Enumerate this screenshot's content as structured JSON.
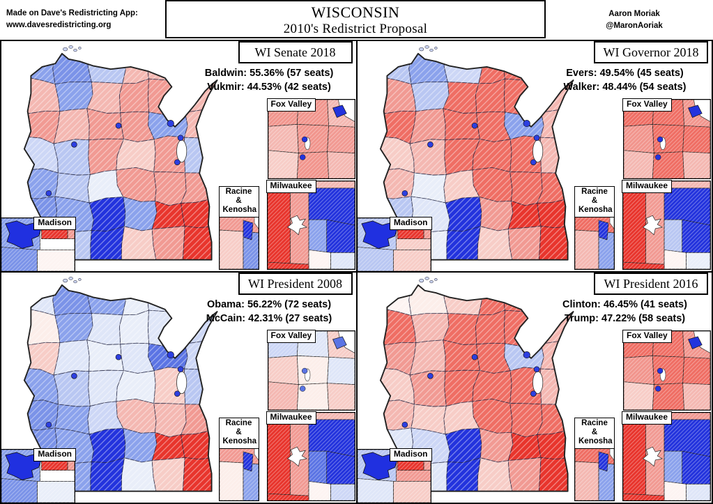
{
  "header": {
    "attribution_line1": "Made on Dave's Redistricting App:",
    "attribution_line2": "www.davesredistricting.org",
    "title_line1": "WISCONSIN",
    "title_line2": "2010's Redistrict Proposal",
    "author_line1": "Aaron Moriak",
    "author_line2": "@MaronAoriak"
  },
  "inset_labels": {
    "fox_valley": "Fox Valley",
    "milwaukee": "Milwaukee",
    "racine_line1": "Racine &",
    "racine_line2": "Kenosha",
    "madison": "Madison"
  },
  "palette": {
    "strong_red": "#e8352d",
    "medium_red": "#ef6e64",
    "red_hatch": "#f19a93",
    "pink": "#f4b8b2",
    "pale_pink": "#f7cdc7",
    "near_white_pink": "#fdf4f2",
    "white": "#ffffff",
    "faint_blue": "#e9eef9",
    "pale_blue": "#dfe6f8",
    "light_blue": "#cdd7f6",
    "light_blue_hatch": "#b9c7f2",
    "medium_blue": "#8ba2ec",
    "medium_blue2": "#7b93e8",
    "strong_blue": "#2333dd",
    "dark_blue": "#2030e0",
    "city_dot": "#2d3fe0",
    "border": "#000000"
  },
  "quadrants": [
    {
      "id": "wi-senate-2018",
      "title": "WI Senate 2018",
      "stat1": "Baldwin: 55.36% (57 seats)",
      "stat2": "Vukmir: 44.53% (42 seats)",
      "map_cells": [
        "#8ba2ec",
        "#7b93e8",
        "#b9c7f2",
        "#f4b8b2",
        "#f4b8b2",
        "#cdd7f6",
        "#f4b8b2",
        "#8ba2ec",
        "#f4b8b2",
        "#f19a93",
        "#f19a93",
        "#f4b8b2",
        "#f19a93",
        "#f4b8b2",
        "#f19a93",
        "#f19a93",
        "#8ba2ec",
        "#f4b8b2",
        "#cdd7f6",
        "#b9c7f2",
        "#f19a93",
        "#f7cdc7",
        "#f19a93",
        "#b9c7f2",
        "#8ba2ec",
        "#b9c7f2",
        "#e9eef9",
        "#f19a93",
        "#f19a93",
        "#f19a93",
        "#7b93e8",
        "#8ba2ec",
        "#2333dd",
        "#8ba2ec",
        "#e8352d",
        "#e8352d",
        "#8ba2ec",
        "#b9c7f2",
        "#2333dd",
        "#f7cdc7",
        "#f19a93",
        "#e8352d"
      ],
      "insets": {
        "fox_valley": [
          "#f1958d",
          "#f1958d",
          "#f4b8b2",
          "#f4b8b2",
          "#f1958d",
          "#f19a93",
          "#f7cdc7",
          "#f1958d",
          "#f4b8b2",
          "#2333dd"
        ],
        "milwaukee": [
          "#e8352d",
          "#f19a93",
          "#f4b8b2",
          "#2333dd",
          "#2333dd",
          "#8ba2ec",
          "#fdf4f2",
          "#dfe6f8",
          "#e8352d"
        ],
        "racine": [
          "#f19a93",
          "#f7cdc7",
          "#7b93e8",
          "#2333dd"
        ],
        "madison": [
          "#8ba2ec",
          "#2030e0",
          "#ffffff",
          "#e8352d",
          "#f19a93",
          "#7b93e8",
          "#fdf4f2"
        ]
      }
    },
    {
      "id": "wi-governor-2018",
      "title": "WI Governor 2018",
      "stat1": "Evers: 49.54% (45 seats)",
      "stat2": "Walker: 48.44% (54 seats)",
      "map_cells": [
        "#b9c7f2",
        "#8ba2ec",
        "#cdd7f6",
        "#ef6e64",
        "#ef6e64",
        "#f4b8b2",
        "#f19a93",
        "#b9c7f2",
        "#ef6e64",
        "#ef6e64",
        "#ef6e64",
        "#f4b8b2",
        "#ef6e64",
        "#f19a93",
        "#ef6e64",
        "#ef6e64",
        "#8ba2ec",
        "#f4b8b2",
        "#f7cdc7",
        "#f4b8b2",
        "#ef6e64",
        "#ef6e64",
        "#ef6e64",
        "#f4b8b2",
        "#f4b8b2",
        "#e9eef9",
        "#f7cdc7",
        "#ef6e64",
        "#ef6e64",
        "#ef6e64",
        "#b9c7f2",
        "#dfe6f8",
        "#2333dd",
        "#f19a93",
        "#e8352d",
        "#e8352d",
        "#b9c7f2",
        "#e9eef9",
        "#2333dd",
        "#f7cdc7",
        "#f19a93",
        "#e8352d"
      ],
      "insets": {
        "fox_valley": [
          "#ef6e64",
          "#ef6e64",
          "#f1958d",
          "#f1958d",
          "#ef6e64",
          "#ef6e64",
          "#f4b8b2",
          "#ef6e64",
          "#f4b8b2",
          "#2333dd"
        ],
        "milwaukee": [
          "#e8352d",
          "#f19a93",
          "#f4b8b2",
          "#2333dd",
          "#2333dd",
          "#b9c7f2",
          "#fdf4f2",
          "#e9eef9",
          "#e8352d"
        ],
        "racine": [
          "#ef6e64",
          "#f4b8b2",
          "#8ba2ec",
          "#2333dd"
        ],
        "madison": [
          "#b9c7f2",
          "#2030e0",
          "#f7cdc7",
          "#e8352d",
          "#f19a93",
          "#b9c7f2",
          "#f7cdc7"
        ]
      }
    },
    {
      "id": "wi-president-2008",
      "title": "WI President 2008",
      "stat1": "Obama: 56.22% (72 seats)",
      "stat2": "McCain: 42.31% (27 seats)",
      "map_cells": [
        "#dfe6f8",
        "#7b93e8",
        "#8ba2ec",
        "#e9eef9",
        "#dfe6f8",
        "#dfe6f8",
        "#fceeea",
        "#8ba2ec",
        "#dfe6f8",
        "#e9eef9",
        "#dfe6f8",
        "#cdd7f6",
        "#f7cdc7",
        "#dfe6f8",
        "#e9eef9",
        "#dfe6f8",
        "#5b74e4",
        "#cdd7f6",
        "#8ba2ec",
        "#b9c7f2",
        "#dfe6f8",
        "#e9eef9",
        "#f7cdc7",
        "#b9c7f2",
        "#7b93e8",
        "#8ba2ec",
        "#cdd7f6",
        "#f4b8b2",
        "#f4b8b2",
        "#f19a93",
        "#7b93e8",
        "#8ba2ec",
        "#2333dd",
        "#8ba2ec",
        "#e8352d",
        "#e8352d",
        "#8ba2ec",
        "#8ba2ec",
        "#2333dd",
        "#e9eef9",
        "#f7cdc7",
        "#e8352d"
      ],
      "insets": {
        "fox_valley": [
          "#cdd7f6",
          "#dfe6f8",
          "#f7cdc7",
          "#f7cdc7",
          "#fceeea",
          "#dfe6f8",
          "#f4b8b2",
          "#fceeea",
          "#f7cdc7",
          "#5b74e4"
        ],
        "milwaukee": [
          "#e8352d",
          "#f19a93",
          "#f4b8b2",
          "#2333dd",
          "#2333dd",
          "#5b74e4",
          "#fdf4f2",
          "#cdd7f6",
          "#e8352d"
        ],
        "racine": [
          "#f19a93",
          "#fceeea",
          "#8ba2ec",
          "#2333dd"
        ],
        "madison": [
          "#8ba2ec",
          "#2030e0",
          "#ffffff",
          "#e8352d",
          "#f19a93",
          "#7b93e8",
          "#e9eef9"
        ]
      }
    },
    {
      "id": "wi-president-2016",
      "title": "WI President 2016",
      "stat1": "Clinton: 46.45% (41 seats)",
      "stat2": "Trump: 47.22% (58 seats)",
      "map_cells": [
        "#fdf4f2",
        "#fceeea",
        "#f7cdc7",
        "#ef6e64",
        "#ef6e64",
        "#f4b8b2",
        "#ef6e64",
        "#f4b8b2",
        "#ef6e64",
        "#ef6e64",
        "#ef6e64",
        "#f4b8b2",
        "#f19a93",
        "#f4b8b2",
        "#ef6e64",
        "#ef6e64",
        "#b9c7f2",
        "#f4b8b2",
        "#f7cdc7",
        "#f19a93",
        "#ef6e64",
        "#ef6e64",
        "#ef6e64",
        "#f4b8b2",
        "#f4b8b2",
        "#f7cdc7",
        "#f7cdc7",
        "#ef6e64",
        "#ef6e64",
        "#ef6e64",
        "#dfe6f8",
        "#cdd7f6",
        "#2333dd",
        "#f19a93",
        "#e8352d",
        "#e8352d",
        "#cdd7f6",
        "#dfe6f8",
        "#2333dd",
        "#f7cdc7",
        "#f19a93",
        "#e8352d"
      ],
      "insets": {
        "fox_valley": [
          "#ef6e64",
          "#ef6e64",
          "#f1958d",
          "#f1958d",
          "#ef6e64",
          "#ef6e64",
          "#f7cdc7",
          "#ef6e64",
          "#f4b8b2",
          "#2333dd"
        ],
        "milwaukee": [
          "#e8352d",
          "#f19a93",
          "#f19a93",
          "#2333dd",
          "#2333dd",
          "#8ba2ec",
          "#fdf4f2",
          "#dfe6f8",
          "#e8352d"
        ],
        "racine": [
          "#ef6e64",
          "#f4b8b2",
          "#8ba2ec",
          "#2333dd"
        ],
        "madison": [
          "#b9c7f2",
          "#2030e0",
          "#f19a93",
          "#e8352d",
          "#f19a93",
          "#dfe6f8",
          "#f7cdc7"
        ]
      }
    }
  ]
}
